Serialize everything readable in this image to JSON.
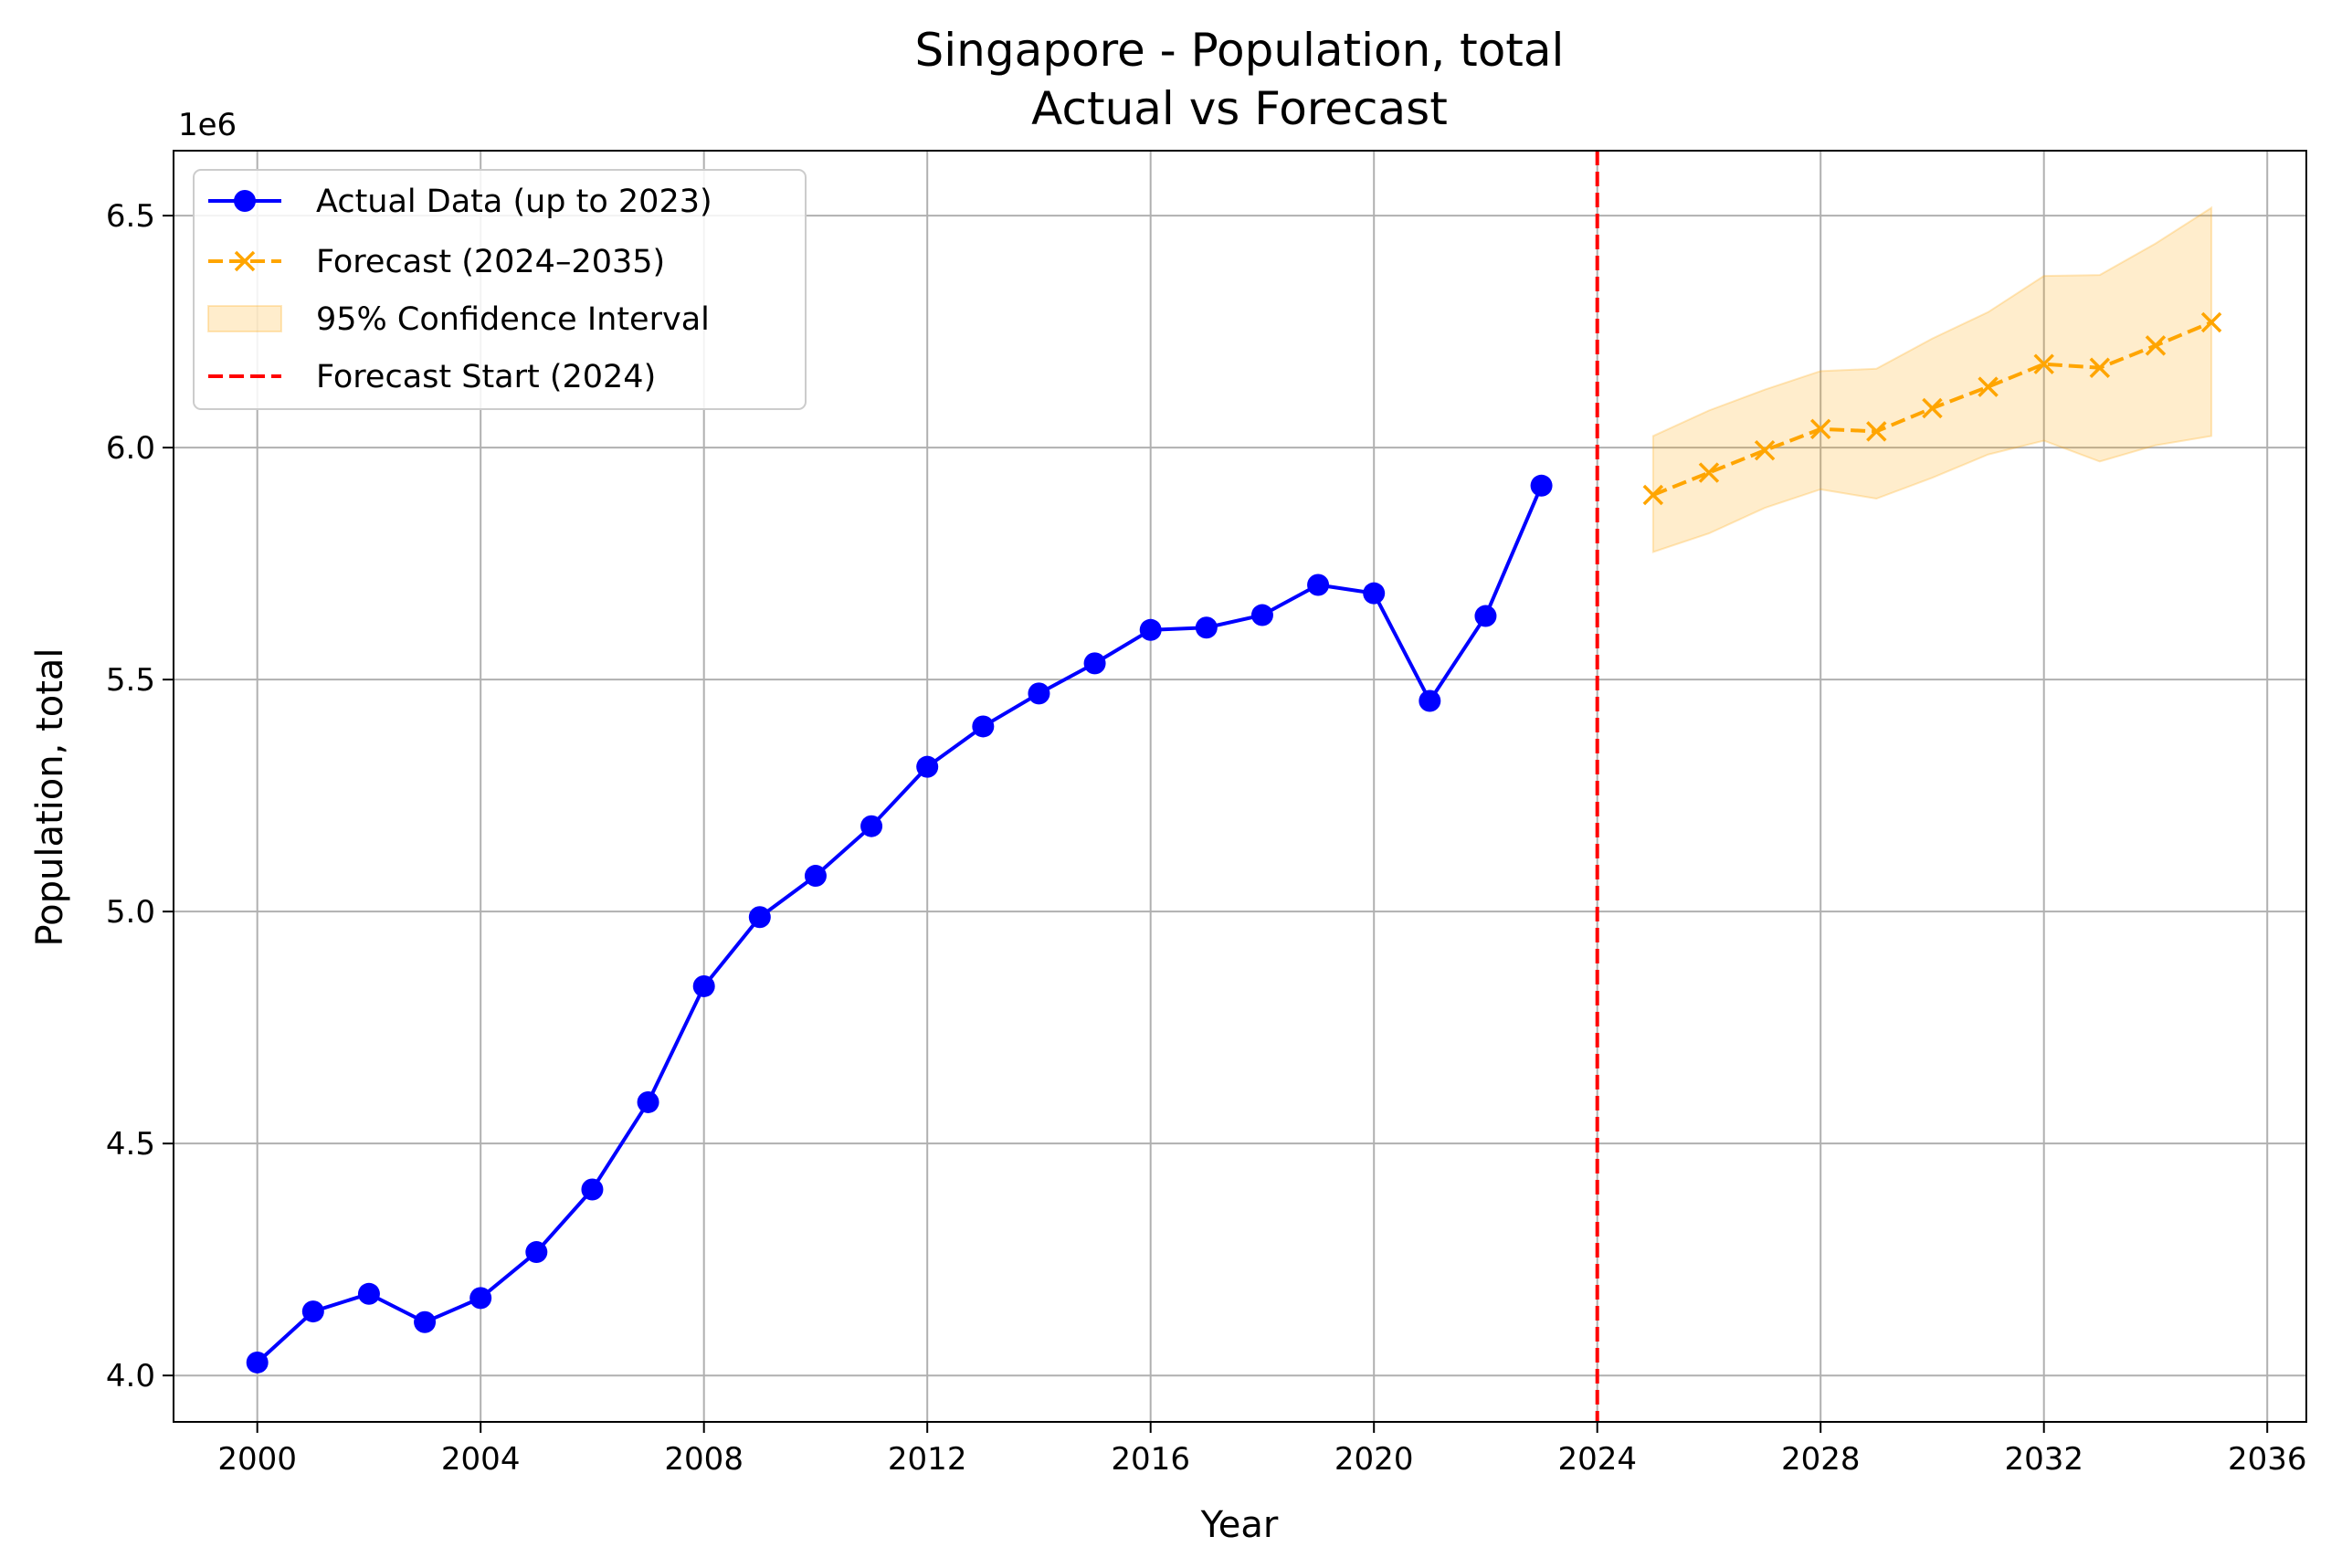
{
  "chart_data": {
    "type": "line",
    "title": "Singapore - Population, total",
    "subtitle": "Actual vs Forecast",
    "xlabel": "Year",
    "ylabel": "Population, total",
    "y_offset_label": "1e6",
    "xlim": [
      1998.5,
      2036.7
    ],
    "ylim": [
      3.9,
      6.64
    ],
    "x_ticks": [
      2000,
      2004,
      2008,
      2012,
      2016,
      2020,
      2024,
      2028,
      2032,
      2036
    ],
    "x_tick_labels": [
      "2000",
      "2004",
      "2008",
      "2012",
      "2016",
      "2020",
      "2024",
      "2028",
      "2032",
      "2036"
    ],
    "y_ticks": [
      4.0,
      4.5,
      5.0,
      5.5,
      6.0,
      6.5
    ],
    "y_tick_labels": [
      "4.0",
      "4.5",
      "5.0",
      "5.5",
      "6.0",
      "6.5"
    ],
    "grid": true,
    "legend_position": "top-left",
    "series": [
      {
        "name": "Actual Data (up to 2023)",
        "style": "solid-circle",
        "color": "#0000ff",
        "x": [
          2000,
          2001,
          2002,
          2003,
          2004,
          2005,
          2006,
          2007,
          2008,
          2009,
          2010,
          2011,
          2012,
          2013,
          2014,
          2015,
          2016,
          2017,
          2018,
          2019,
          2020,
          2021,
          2022,
          2023
        ],
        "y": [
          4.028,
          4.138,
          4.176,
          4.115,
          4.167,
          4.266,
          4.401,
          4.589,
          4.839,
          4.988,
          5.077,
          5.184,
          5.312,
          5.399,
          5.47,
          5.535,
          5.607,
          5.612,
          5.639,
          5.704,
          5.686,
          5.454,
          5.637,
          5.918
        ]
      },
      {
        "name": "Forecast (2024–2035)",
        "style": "dashed-x",
        "color": "#ffa500",
        "x": [
          2025,
          2026,
          2027,
          2028,
          2029,
          2030,
          2031,
          2032,
          2033,
          2034,
          2035
        ],
        "y": [
          5.898,
          5.946,
          5.994,
          6.04,
          6.035,
          6.085,
          6.131,
          6.18,
          6.172,
          6.22,
          6.27
        ]
      }
    ],
    "confidence_interval": {
      "name": "95% Confidence Interval",
      "color": "#ffa500",
      "x": [
        2025,
        2026,
        2027,
        2028,
        2029,
        2030,
        2031,
        2032,
        2033,
        2034,
        2035
      ],
      "lower": [
        5.775,
        5.815,
        5.87,
        5.91,
        5.89,
        5.935,
        5.985,
        6.015,
        5.97,
        6.005,
        6.025
      ],
      "upper": [
        6.025,
        6.08,
        6.125,
        6.165,
        6.17,
        6.235,
        6.292,
        6.37,
        6.372,
        6.44,
        6.517
      ]
    },
    "forecast_start": {
      "name": "Forecast Start (2024)",
      "x": 2024,
      "color": "#ff0000"
    }
  }
}
